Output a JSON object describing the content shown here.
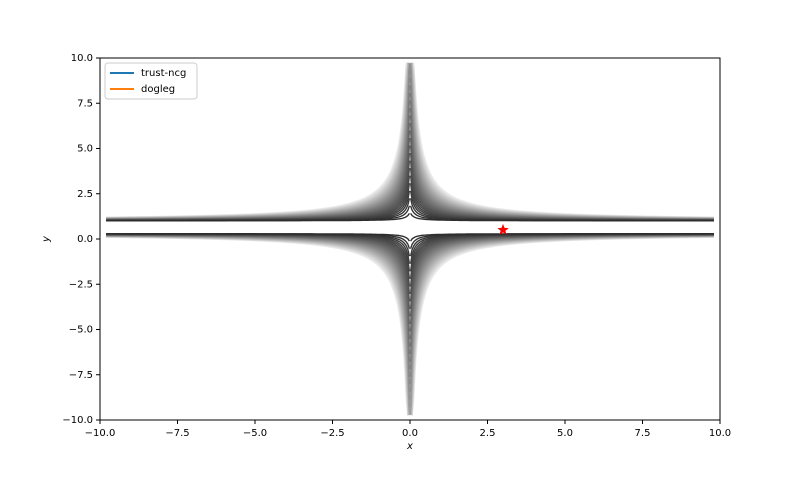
{
  "chart_data": {
    "type": "contour",
    "xlabel": "x",
    "ylabel": "y",
    "xlim": [
      -10,
      10
    ],
    "ylim": [
      -10,
      10
    ],
    "xticks": [
      {
        "value": -10,
        "label": "−10.0"
      },
      {
        "value": -7.5,
        "label": "−7.5"
      },
      {
        "value": -5,
        "label": "−5.0"
      },
      {
        "value": -2.5,
        "label": "−2.5"
      },
      {
        "value": 0,
        "label": "0.0"
      },
      {
        "value": 2.5,
        "label": "2.5"
      },
      {
        "value": 5,
        "label": "5.0"
      },
      {
        "value": 7.5,
        "label": "7.5"
      },
      {
        "value": 10,
        "label": "10.0"
      }
    ],
    "yticks": [
      {
        "value": -10,
        "label": "−10.0"
      },
      {
        "value": -7.5,
        "label": "−7.5"
      },
      {
        "value": -5,
        "label": "−5.0"
      },
      {
        "value": -2.5,
        "label": "−2.5"
      },
      {
        "value": 0,
        "label": "0.0"
      },
      {
        "value": 2.5,
        "label": "2.5"
      },
      {
        "value": 5,
        "label": "5.0"
      },
      {
        "value": 7.5,
        "label": "7.5"
      },
      {
        "value": 10,
        "label": "10.0"
      }
    ],
    "series": [
      {
        "name": "trust-ncg",
        "color": "#1f77b4"
      },
      {
        "name": "dogleg",
        "color": "#ff7f0e"
      }
    ],
    "minimum": {
      "x": 3,
      "y": 0.5,
      "color": "red"
    },
    "legend": "upper left"
  }
}
